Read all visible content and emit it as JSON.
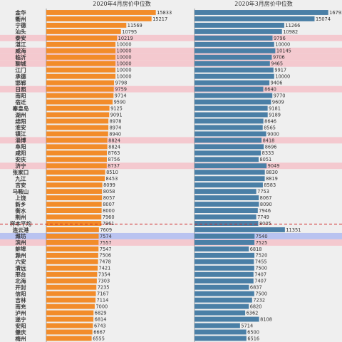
{
  "colors": {
    "april_bar": "#f28c2a",
    "march_bar": "#4a7fa6",
    "highlight_pink": "#f4c9cf",
    "highlight_blue": "#b9c3f0",
    "average_line": "#d02020",
    "background": "#efefef"
  },
  "chart_data": {
    "type": "bar",
    "orientation": "horizontal",
    "panels": [
      {
        "title": "2020年4月房价中位数",
        "series_key": "april"
      },
      {
        "title": "2020年3月房价中位数",
        "series_key": "march"
      }
    ],
    "xlim": [
      0,
      17000
    ],
    "grid": false,
    "legend": "none",
    "rows": [
      {
        "city": "金华",
        "april": 15833,
        "march": 16793,
        "hl": ""
      },
      {
        "city": "衢州",
        "april": 15217,
        "march": 15074,
        "hl": ""
      },
      {
        "city": "宁德",
        "april": 11569,
        "march": 11266,
        "hl": ""
      },
      {
        "city": "汕头",
        "april": 10795,
        "march": 10982,
        "hl": ""
      },
      {
        "city": "泰安",
        "april": 10219,
        "march": 9796,
        "hl": "pink"
      },
      {
        "city": "湛江",
        "april": 10000,
        "march": 10000,
        "hl": ""
      },
      {
        "city": "威海",
        "april": 10000,
        "march": 10145,
        "hl": "pink"
      },
      {
        "city": "临沂",
        "april": 10000,
        "march": 9706,
        "hl": "pink"
      },
      {
        "city": "聊城",
        "april": 10000,
        "march": 9465,
        "hl": "pink"
      },
      {
        "city": "江门",
        "april": 10000,
        "march": 9917,
        "hl": ""
      },
      {
        "city": "承德",
        "april": 10000,
        "march": 10000,
        "hl": ""
      },
      {
        "city": "邯郸",
        "april": 9798,
        "march": 9406,
        "hl": ""
      },
      {
        "city": "日照",
        "april": 9759,
        "march": 8640,
        "hl": "pink"
      },
      {
        "city": "南阳",
        "april": 9714,
        "march": 9770,
        "hl": ""
      },
      {
        "city": "宿迁",
        "april": 9590,
        "march": 9609,
        "hl": ""
      },
      {
        "city": "秦皇岛",
        "april": 9125,
        "march": 9181,
        "hl": ""
      },
      {
        "city": "湖州",
        "april": 9091,
        "march": 9189,
        "hl": ""
      },
      {
        "city": "绵阳",
        "april": 8978,
        "march": 8646,
        "hl": ""
      },
      {
        "city": "淮安",
        "april": 8974,
        "march": 8565,
        "hl": ""
      },
      {
        "city": "镇江",
        "april": 8940,
        "march": 9000,
        "hl": ""
      },
      {
        "city": "淄博",
        "april": 8824,
        "march": 8418,
        "hl": "pink"
      },
      {
        "city": "阜阳",
        "april": 8824,
        "march": 8696,
        "hl": ""
      },
      {
        "city": "咸阳",
        "april": 8763,
        "march": 8333,
        "hl": ""
      },
      {
        "city": "安庆",
        "april": 8756,
        "march": 8051,
        "hl": ""
      },
      {
        "city": "济宁",
        "april": 8737,
        "march": 9049,
        "hl": "pink"
      },
      {
        "city": "张家口",
        "april": 8510,
        "march": 8830,
        "hl": ""
      },
      {
        "city": "九江",
        "april": 8453,
        "march": 8819,
        "hl": ""
      },
      {
        "city": "吉安",
        "april": 8099,
        "march": 8583,
        "hl": ""
      },
      {
        "city": "马鞍山",
        "april": 8058,
        "march": 7753,
        "hl": ""
      },
      {
        "city": "上饶",
        "april": 8057,
        "march": 8067,
        "hl": ""
      },
      {
        "city": "新乡",
        "april": 8007,
        "march": 8090,
        "hl": ""
      },
      {
        "city": "衡水",
        "april": 8000,
        "march": 7946,
        "hl": ""
      },
      {
        "city": "荆州",
        "april": 7960,
        "march": 7749,
        "hl": ""
      },
      {
        "city": "样本平均",
        "april": 7961,
        "march": 8005,
        "hl": "",
        "avg": true
      },
      {
        "city": "连云港",
        "april": 7609,
        "march": 11351,
        "hl": ""
      },
      {
        "city": "潍坊",
        "april": 7574,
        "march": 7540,
        "hl": "blue"
      },
      {
        "city": "滨州",
        "april": 7557,
        "march": 7525,
        "hl": "pink"
      },
      {
        "city": "蚌埠",
        "april": 7547,
        "march": 6818,
        "hl": ""
      },
      {
        "city": "滁州",
        "april": 7506,
        "march": 7520,
        "hl": ""
      },
      {
        "city": "六安",
        "april": 7478,
        "march": 7455,
        "hl": ""
      },
      {
        "city": "清远",
        "april": 7421,
        "march": 7500,
        "hl": ""
      },
      {
        "city": "邢台",
        "april": 7354,
        "march": 7407,
        "hl": ""
      },
      {
        "city": "北海",
        "april": 7303,
        "march": 7407,
        "hl": ""
      },
      {
        "city": "开封",
        "april": 7235,
        "march": 6837,
        "hl": ""
      },
      {
        "city": "信阳",
        "april": 7167,
        "march": 7500,
        "hl": ""
      },
      {
        "city": "吉林",
        "april": 7114,
        "march": 7232,
        "hl": ""
      },
      {
        "city": "南充",
        "april": 7000,
        "march": 6820,
        "hl": ""
      },
      {
        "city": "泸州",
        "april": 6829,
        "march": 6362,
        "hl": ""
      },
      {
        "city": "遂宁",
        "april": 6814,
        "march": 8108,
        "hl": ""
      },
      {
        "city": "安阳",
        "april": 6743,
        "march": 5714,
        "hl": ""
      },
      {
        "city": "肇庆",
        "april": 6667,
        "march": 6500,
        "hl": ""
      },
      {
        "city": "梅州",
        "april": 6555,
        "march": 6516,
        "hl": ""
      }
    ]
  }
}
